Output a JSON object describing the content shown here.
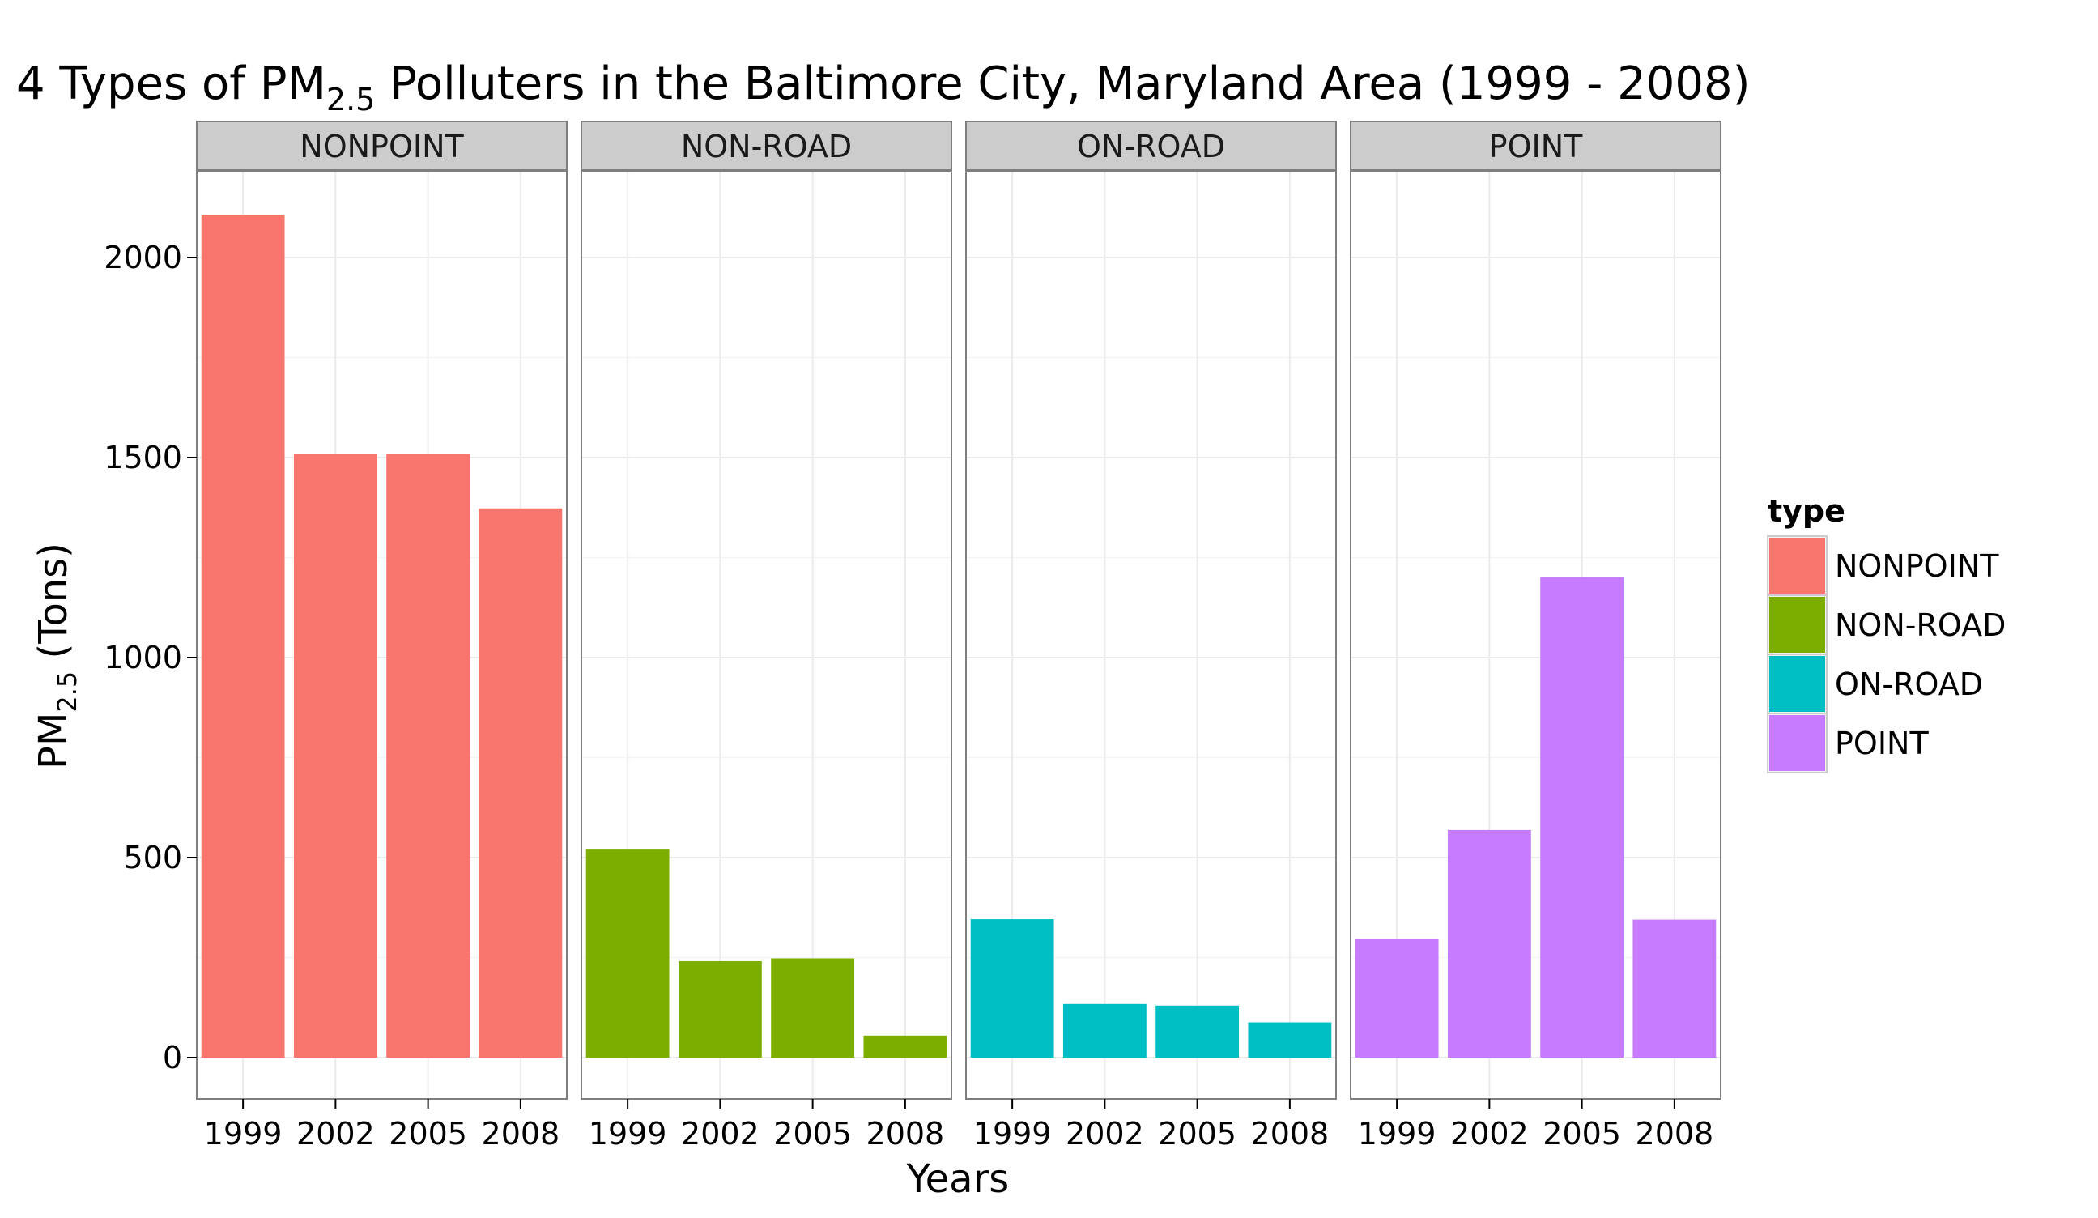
{
  "chart_data": {
    "type": "bar",
    "title": {
      "prefix": "4 Types of PM",
      "subscript": "2.5",
      "suffix": " Polluters in the Baltimore City, Maryland Area (1999 - 2008)"
    },
    "xlabel": "Years",
    "ylabel": {
      "prefix": "PM",
      "subscript": "2.5",
      "suffix": " (Tons)"
    },
    "categories": [
      "1999",
      "2002",
      "2005",
      "2008"
    ],
    "ylim": [
      -100,
      2200
    ],
    "yticks": [
      0,
      500,
      1000,
      1500,
      2000
    ],
    "grid": true,
    "legend_position": "right",
    "legend_title": "type",
    "panels": [
      {
        "name": "NONPOINT",
        "color": "#F8766D",
        "values": [
          2107,
          1510,
          1510,
          1373
        ]
      },
      {
        "name": "NON-ROAD",
        "color": "#7CAE00",
        "values": [
          522,
          241,
          248,
          55
        ]
      },
      {
        "name": "ON-ROAD",
        "color": "#00BFC4",
        "values": [
          346,
          134,
          130,
          88
        ]
      },
      {
        "name": "POINT",
        "color": "#C77CFF",
        "values": [
          296,
          569,
          1202,
          345
        ]
      }
    ]
  }
}
